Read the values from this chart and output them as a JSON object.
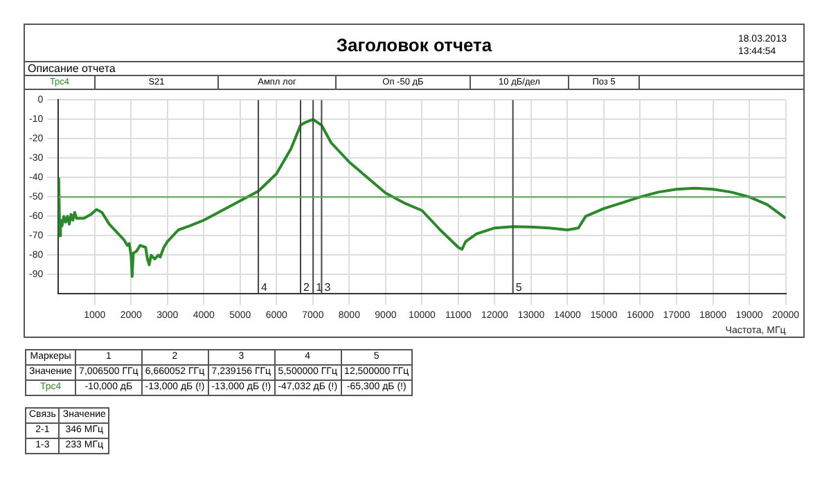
{
  "chart_data": {
    "type": "line",
    "title": "Заголовок отчета",
    "subtitle": "Описание отчета",
    "xlabel": "Частота, МГц",
    "x": [
      10,
      40,
      60,
      100,
      150,
      200,
      250,
      300,
      350,
      400,
      450,
      500,
      700,
      900,
      1050,
      1200,
      1400,
      1600,
      1800,
      1900,
      1950,
      2000,
      2030,
      2060,
      2150,
      2250,
      2400,
      2450,
      2500,
      2550,
      2650,
      2750,
      2800,
      2900,
      3000,
      3300,
      3600,
      4000,
      4500,
      5000,
      5500,
      6000,
      6400,
      6660,
      6800,
      7006,
      7239,
      7500,
      8000,
      8500,
      9000,
      9500,
      10000,
      10500,
      11000,
      11100,
      11200,
      11500,
      12000,
      12500,
      13000,
      13500,
      14000,
      14300,
      14500,
      15000,
      15500,
      16000,
      16500,
      17000,
      17500,
      18000,
      18500,
      19000,
      19500,
      20000
    ],
    "series": [
      {
        "name": "Трс4",
        "color": "#2a8a2a",
        "values": [
          -40,
          -70,
          -62,
          -65,
          -60,
          -63,
          -60,
          -64,
          -59,
          -62,
          -58,
          -61,
          -61,
          -59,
          -56.5,
          -58,
          -64,
          -68,
          -72,
          -75,
          -74,
          -80,
          -91,
          -79,
          -78,
          -75,
          -76,
          -82,
          -85,
          -80,
          -82,
          -80,
          -81,
          -76,
          -73,
          -67,
          -65,
          -62,
          -57,
          -52,
          -47,
          -38,
          -25,
          -13,
          -11.5,
          -10,
          -13,
          -22,
          -32,
          -40,
          -48,
          -53,
          -57,
          -67,
          -76,
          -77,
          -73,
          -69,
          -66,
          -65.3,
          -65.5,
          -66,
          -67,
          -66,
          -60,
          -56,
          -53,
          -50,
          -47.5,
          -46,
          -45.5,
          -46,
          -47.5,
          -50,
          -54,
          -61
        ]
      }
    ],
    "xlim": [
      0,
      20000
    ],
    "xticks": [
      1000,
      2000,
      3000,
      4000,
      5000,
      6000,
      7000,
      8000,
      9000,
      10000,
      11000,
      12000,
      13000,
      14000,
      15000,
      16000,
      17000,
      18000,
      19000,
      20000
    ],
    "ylim": [
      -100,
      0
    ],
    "yticks": [
      0,
      -10,
      -20,
      -30,
      -40,
      -50,
      -60,
      -70,
      -80,
      -90
    ],
    "grid": true,
    "legend": false,
    "marker": "none",
    "line_style": "solid",
    "ref_lines": [
      {
        "axis": "x",
        "value": 7006.5,
        "color": "#444444"
      },
      {
        "axis": "x",
        "value": 6660.052,
        "color": "#444444"
      },
      {
        "axis": "x",
        "value": 7239.156,
        "color": "#444444"
      },
      {
        "axis": "x",
        "value": 5500,
        "color": "#444444"
      },
      {
        "axis": "x",
        "value": 12500,
        "color": "#444444"
      },
      {
        "axis": "y",
        "value": -50,
        "color": "#5aa55a"
      }
    ],
    "annotations": [
      "18.03.2013",
      "13:44:54",
      "S21",
      "Ампл лог",
      "Оп -50 дБ",
      "10 дБ/дел",
      "Поз 5",
      {
        "text": "1",
        "x": 7006.5,
        "y": -97
      },
      {
        "text": "2",
        "x": 6660.052,
        "y": -97
      },
      {
        "text": "3",
        "x": 7239.156,
        "y": -97
      },
      {
        "text": "4",
        "x": 5500,
        "y": -97
      },
      {
        "text": "5",
        "x": 12500,
        "y": -97
      },
      "Маркеры",
      "Значение",
      "7,006500 ГГц",
      "6,660052 ГГц",
      "7,239156 ГГц",
      "5,500000 ГГц",
      "12,500000 ГГц",
      "-10,000 дБ",
      "-13,000 дБ (!)",
      "-13,000 дБ (!)",
      "-47,032 дБ (!)",
      "-65,300 дБ (!)",
      "Связь",
      "Значение",
      "2-1",
      "346 МГц",
      "1-3",
      "233 МГц"
    ]
  }
}
